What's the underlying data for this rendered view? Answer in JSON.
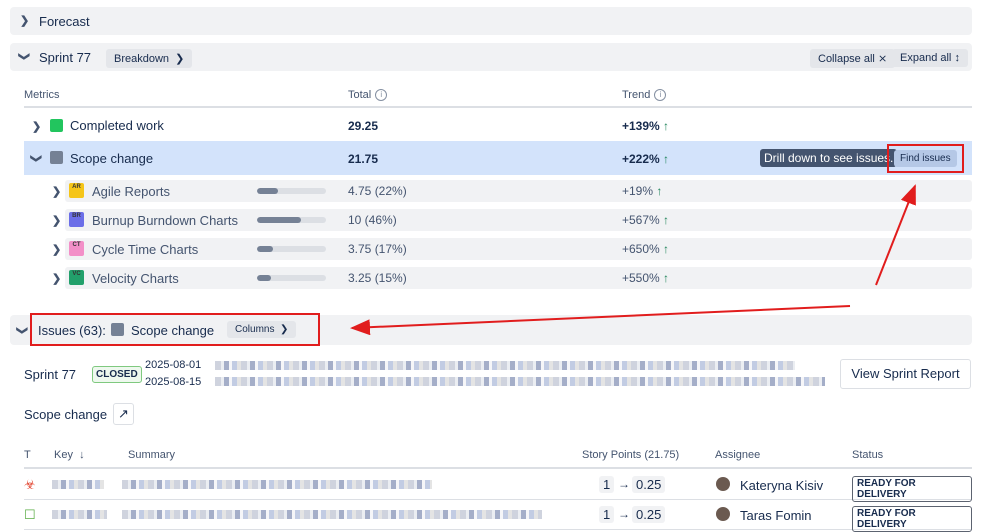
{
  "forecast": {
    "label": "Forecast"
  },
  "sprint": {
    "title": "Sprint 77",
    "breakdown": "Breakdown",
    "collapse_all": "Collapse all",
    "expand_all": "Expand all"
  },
  "metrics_header": {
    "metrics": "Metrics",
    "total": "Total",
    "trend": "Trend"
  },
  "metrics": [
    {
      "label": "Completed work",
      "total": "29.25",
      "trend": "+139%",
      "color": "#22c55e"
    },
    {
      "label": "Scope change",
      "total": "21.75",
      "trend": "+222%",
      "color": "#758195",
      "tooltip": "Drill down to see issues.",
      "find_issues": "Find issues"
    }
  ],
  "sub_metrics": [
    {
      "label": "Agile Reports",
      "abbr": "AR",
      "value": "4.75 (22%)",
      "trend": "+19%",
      "share": 22,
      "color": "#f5c518"
    },
    {
      "label": "Burnup Burndown Charts",
      "abbr": "BR",
      "value": "10 (46%)",
      "trend": "+567%",
      "share": 46,
      "color": "#6b6ee8"
    },
    {
      "label": "Cycle Time Charts",
      "abbr": "CT",
      "value": "3.75 (17%)",
      "trend": "+650%",
      "share": 17,
      "color": "#f38fc8"
    },
    {
      "label": "Velocity Charts",
      "abbr": "VC",
      "value": "3.25 (15%)",
      "trend": "+550%",
      "share": 15,
      "color": "#22a06b"
    }
  ],
  "issues": {
    "title": "Issues (63):",
    "metric": "Scope change",
    "columns": "Columns"
  },
  "sprint_info": {
    "name": "Sprint 77",
    "state": "CLOSED",
    "start": "2025-08-01",
    "end": "2025-08-15",
    "report_button": "View Sprint Report"
  },
  "scope_title": "Scope change",
  "table": {
    "headers": {
      "type": "T",
      "key": "Key",
      "summary": "Summary",
      "story_points": "Story Points (21.75)",
      "assignee": "Assignee",
      "status": "Status"
    },
    "rows": [
      {
        "type": "bug",
        "sp_from": "1",
        "sp_to": "0.25",
        "assignee": "Kateryna Kisiv",
        "status": "READY FOR DELIVERY"
      },
      {
        "type": "story",
        "sp_from": "1",
        "sp_to": "0.25",
        "assignee": "Taras Fomin",
        "status": "READY FOR DELIVERY"
      }
    ]
  },
  "annotation_color": "#e11d1d"
}
